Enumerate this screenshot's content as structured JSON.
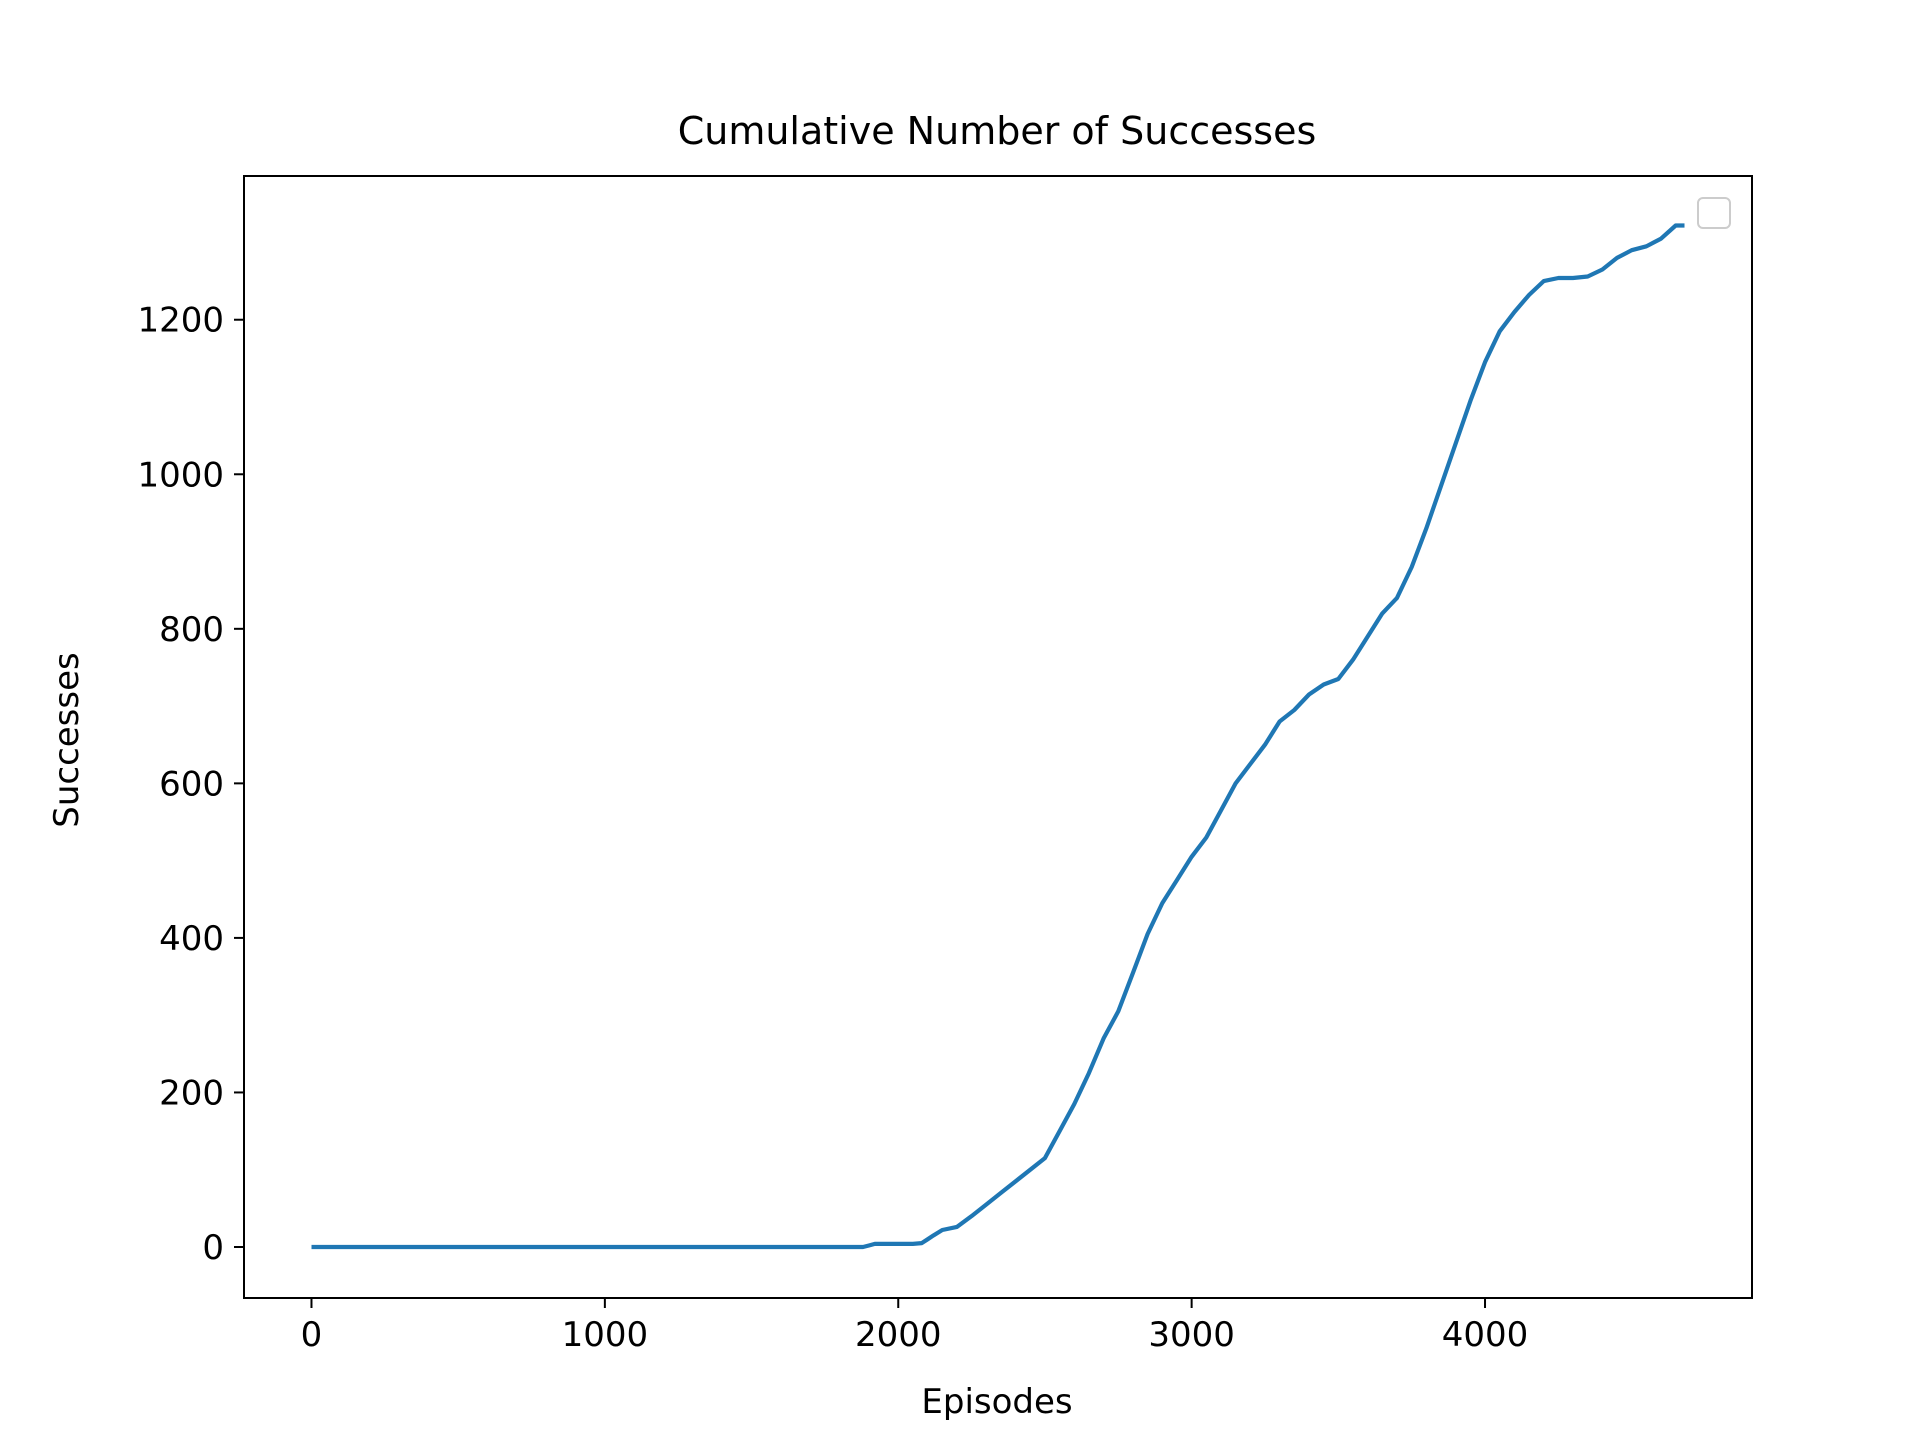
{
  "chart_data": {
    "type": "line",
    "title": "Cumulative Number of Successes",
    "xlabel": "Episodes",
    "ylabel": "Successes",
    "xlim": [
      -230,
      4910
    ],
    "ylim": [
      -66,
      1386
    ],
    "xticks": [
      0,
      1000,
      2000,
      3000,
      4000
    ],
    "yticks": [
      0,
      200,
      400,
      600,
      800,
      1000,
      1200
    ],
    "grid": false,
    "legend": {
      "placement": "top-right",
      "entries": []
    },
    "colors": {
      "line": "#1f77b4",
      "axes": "#000000",
      "legend_border": "#cccccc",
      "background": "#ffffff"
    },
    "series": [
      {
        "x": [
          0,
          500,
          1000,
          1500,
          1880,
          1900,
          1920,
          2000,
          2050,
          2080,
          2100,
          2120,
          2150,
          2200,
          2250,
          2300,
          2350,
          2400,
          2450,
          2500,
          2550,
          2600,
          2650,
          2700,
          2750,
          2800,
          2850,
          2900,
          2950,
          3000,
          3050,
          3100,
          3150,
          3200,
          3250,
          3300,
          3350,
          3400,
          3450,
          3500,
          3550,
          3600,
          3650,
          3700,
          3750,
          3800,
          3850,
          3900,
          3950,
          4000,
          4050,
          4100,
          4150,
          4200,
          4250,
          4300,
          4350,
          4400,
          4450,
          4500,
          4550,
          4600,
          4650,
          4680
        ],
        "y": [
          0,
          0,
          0,
          0,
          0,
          2,
          4,
          4,
          4,
          5,
          10,
          15,
          22,
          26,
          40,
          55,
          70,
          85,
          100,
          115,
          150,
          185,
          225,
          270,
          305,
          355,
          405,
          445,
          475,
          505,
          530,
          565,
          600,
          625,
          650,
          680,
          695,
          715,
          728,
          735,
          760,
          790,
          820,
          840,
          880,
          930,
          985,
          1040,
          1095,
          1145,
          1185,
          1210,
          1232,
          1250,
          1254,
          1254,
          1256,
          1265,
          1280,
          1290,
          1295,
          1305,
          1322,
          1322
        ]
      }
    ]
  }
}
